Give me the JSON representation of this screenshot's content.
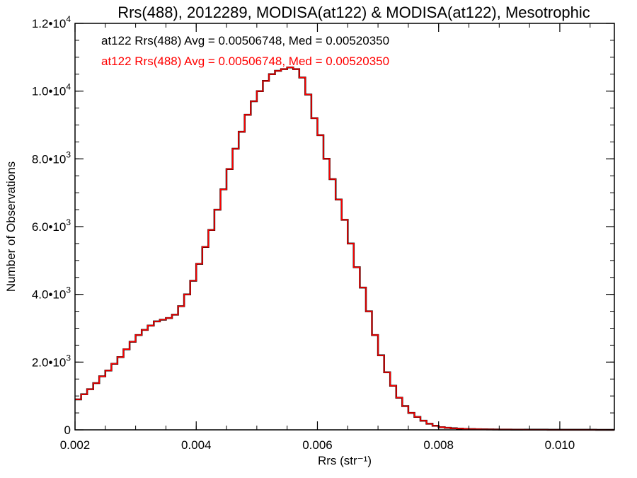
{
  "chart_data": {
    "type": "histogram",
    "title": "Rrs(488), 2012289, MODISA(at122) & MODISA(at122), Mesotrophic",
    "xlabel": "Rrs (str⁻¹)",
    "ylabel": "Number of Observations",
    "xlim": [
      0.002,
      0.0109
    ],
    "ylim": [
      0,
      12000
    ],
    "x_ticks": [
      {
        "value": 0.002,
        "label": "0.002"
      },
      {
        "value": 0.004,
        "label": "0.004"
      },
      {
        "value": 0.006,
        "label": "0.006"
      },
      {
        "value": 0.008,
        "label": "0.008"
      },
      {
        "value": 0.01,
        "label": "0.010"
      }
    ],
    "y_ticks": [
      {
        "value": 0,
        "mantissa": "0",
        "exponent": ""
      },
      {
        "value": 2000,
        "mantissa": "2.0•10",
        "exponent": "3"
      },
      {
        "value": 4000,
        "mantissa": "4.0•10",
        "exponent": "3"
      },
      {
        "value": 6000,
        "mantissa": "6.0•10",
        "exponent": "3"
      },
      {
        "value": 8000,
        "mantissa": "8.0•10",
        "exponent": "3"
      },
      {
        "value": 10000,
        "mantissa": "1.0•10",
        "exponent": "4"
      },
      {
        "value": 12000,
        "mantissa": "1.2•10",
        "exponent": "4"
      }
    ],
    "grid": false,
    "legend_position": "top-left",
    "legend": [
      {
        "text": "at122 Rrs(488) Avg = 0.00506748, Med = 0.00520350",
        "color": "#000000"
      },
      {
        "text": "at122 Rrs(488) Avg = 0.00506748, Med = 0.00520350",
        "color": "#ff0000"
      }
    ],
    "series": [
      {
        "color": "#000000",
        "x": [
          0.002,
          0.0021,
          0.0022,
          0.0023,
          0.0024,
          0.0025,
          0.0026,
          0.0027,
          0.0028,
          0.0029,
          0.003,
          0.0031,
          0.0032,
          0.0033,
          0.0034,
          0.0035,
          0.0036,
          0.0037,
          0.0038,
          0.0039,
          0.004,
          0.0041,
          0.0042,
          0.0043,
          0.0044,
          0.0045,
          0.0046,
          0.0047,
          0.0048,
          0.0049,
          0.005,
          0.0051,
          0.0052,
          0.0053,
          0.0054,
          0.0055,
          0.0056,
          0.0057,
          0.0058,
          0.0059,
          0.006,
          0.0061,
          0.0062,
          0.0063,
          0.0064,
          0.0065,
          0.0066,
          0.0067,
          0.0068,
          0.0069,
          0.007,
          0.0071,
          0.0072,
          0.0073,
          0.0074,
          0.0075,
          0.0076,
          0.0077,
          0.0078,
          0.0079,
          0.008,
          0.0081,
          0.0082,
          0.0083,
          0.0084,
          0.0085,
          0.0086,
          0.0087,
          0.0088,
          0.0089,
          0.009,
          0.0092,
          0.0094,
          0.0096,
          0.0098,
          0.01,
          0.0102,
          0.0104,
          0.0106,
          0.0108,
          0.0109
        ],
        "y": [
          900,
          1050,
          1200,
          1380,
          1580,
          1750,
          1950,
          2150,
          2380,
          2600,
          2800,
          2950,
          3080,
          3200,
          3250,
          3300,
          3400,
          3650,
          4000,
          4400,
          4900,
          5400,
          5900,
          6500,
          7100,
          7700,
          8300,
          8800,
          9300,
          9700,
          10000,
          10300,
          10500,
          10600,
          10650,
          10700,
          10650,
          10400,
          9900,
          9200,
          8700,
          8000,
          7400,
          6800,
          6200,
          5500,
          4800,
          4200,
          3500,
          2800,
          2200,
          1700,
          1300,
          950,
          700,
          500,
          380,
          270,
          180,
          120,
          80,
          60,
          45,
          35,
          28,
          22,
          18,
          15,
          12,
          10,
          8,
          6,
          5,
          4,
          3,
          3,
          2,
          2,
          1,
          1,
          0
        ]
      },
      {
        "color": "#ff0000",
        "x": [
          0.002,
          0.0021,
          0.0022,
          0.0023,
          0.0024,
          0.0025,
          0.0026,
          0.0027,
          0.0028,
          0.0029,
          0.003,
          0.0031,
          0.0032,
          0.0033,
          0.0034,
          0.0035,
          0.0036,
          0.0037,
          0.0038,
          0.0039,
          0.004,
          0.0041,
          0.0042,
          0.0043,
          0.0044,
          0.0045,
          0.0046,
          0.0047,
          0.0048,
          0.0049,
          0.005,
          0.0051,
          0.0052,
          0.0053,
          0.0054,
          0.0055,
          0.0056,
          0.0057,
          0.0058,
          0.0059,
          0.006,
          0.0061,
          0.0062,
          0.0063,
          0.0064,
          0.0065,
          0.0066,
          0.0067,
          0.0068,
          0.0069,
          0.007,
          0.0071,
          0.0072,
          0.0073,
          0.0074,
          0.0075,
          0.0076,
          0.0077,
          0.0078,
          0.0079,
          0.008,
          0.0081,
          0.0082,
          0.0083,
          0.0084,
          0.0085,
          0.0086,
          0.0087,
          0.0088,
          0.0089,
          0.009,
          0.0092,
          0.0094,
          0.0096,
          0.0098,
          0.01,
          0.0102,
          0.0104,
          0.0106,
          0.0108,
          0.0109
        ],
        "y": [
          900,
          1050,
          1200,
          1380,
          1580,
          1750,
          1950,
          2150,
          2380,
          2600,
          2800,
          2950,
          3080,
          3200,
          3250,
          3300,
          3400,
          3650,
          4000,
          4400,
          4900,
          5400,
          5900,
          6500,
          7100,
          7700,
          8300,
          8800,
          9300,
          9700,
          10000,
          10300,
          10500,
          10600,
          10650,
          10700,
          10650,
          10400,
          9900,
          9200,
          8700,
          8000,
          7400,
          6800,
          6200,
          5500,
          4800,
          4200,
          3500,
          2800,
          2200,
          1700,
          1300,
          950,
          700,
          500,
          380,
          270,
          180,
          120,
          80,
          60,
          45,
          35,
          28,
          22,
          18,
          15,
          12,
          10,
          8,
          6,
          5,
          4,
          3,
          3,
          2,
          2,
          1,
          1,
          0
        ]
      }
    ]
  }
}
